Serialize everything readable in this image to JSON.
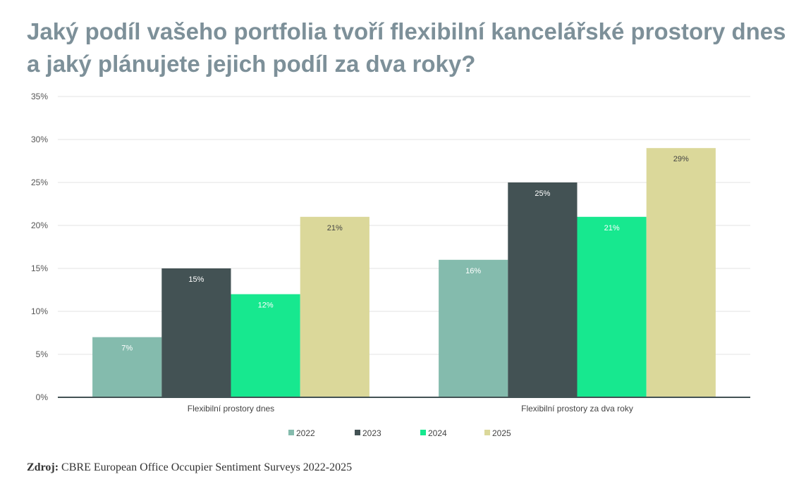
{
  "title": "Jaký podíl vašeho portfolia tvoří flexibilní kancelářské prostory dnes a jaký plánujete jejich podíl za dva roky?",
  "source": {
    "label": "Zdroj:",
    "text": " CBRE European Office Occupier Sentiment Surveys 2022-2025"
  },
  "chart_data": {
    "type": "bar",
    "title": "",
    "categories": [
      "Flexibilní prostory dnes",
      "Flexibilní prostory za dva roky"
    ],
    "series": [
      {
        "name": "2022",
        "values": [
          7,
          16
        ],
        "color": "#84bbad"
      },
      {
        "name": "2023",
        "values": [
          15,
          25
        ],
        "color": "#435254"
      },
      {
        "name": "2024",
        "values": [
          12,
          21
        ],
        "color": "#17e88f"
      },
      {
        "name": "2025",
        "values": [
          21,
          29
        ],
        "color": "#dbd89a"
      }
    ],
    "value_format": "%",
    "ylim": [
      0,
      35
    ],
    "yticks": [
      0,
      5,
      10,
      15,
      20,
      25,
      30,
      35
    ],
    "ytick_labels": [
      "0%",
      "5%",
      "10%",
      "15%",
      "20%",
      "25%",
      "30%",
      "35%"
    ],
    "grid": true,
    "legend": "bottom"
  }
}
